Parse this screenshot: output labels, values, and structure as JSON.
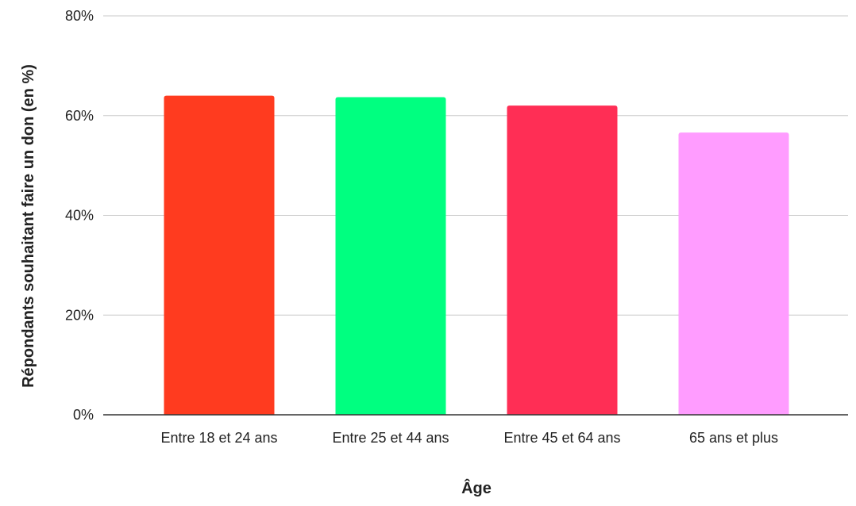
{
  "chart_data": {
    "type": "bar",
    "title": "",
    "xlabel": "Âge",
    "ylabel": "Répondants souhaitant faire un  don (en %)",
    "categories": [
      "Entre 18 et 24 ans",
      "Entre 25 et 44 ans",
      "Entre 45 et 64 ans",
      "65 ans et plus"
    ],
    "values": [
      64,
      63.7,
      62,
      56.6
    ],
    "colors": [
      "#ff3b1f",
      "#00ff80",
      "#ff2e55",
      "#ff9cff"
    ],
    "ylim": [
      0,
      80
    ],
    "yticks": [
      "0%",
      "20%",
      "40%",
      "60%",
      "80%"
    ],
    "ytick_values": [
      0,
      20,
      40,
      60,
      80
    ],
    "value_format": "percent",
    "grid": true,
    "legend": "none"
  }
}
